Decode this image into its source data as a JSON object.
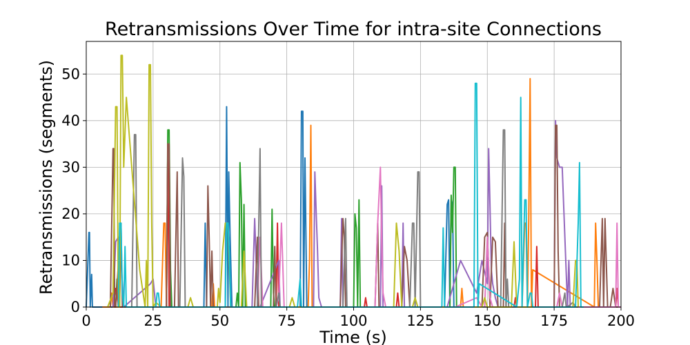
{
  "chart_data": {
    "type": "line",
    "title": "Retransmissions Over Time for intra-site Connections",
    "xlabel": "Time (s)",
    "ylabel": "Retransmissions (segments)",
    "xlim": [
      0,
      200
    ],
    "ylim": [
      0,
      57
    ],
    "xticks": [
      0,
      25,
      50,
      75,
      100,
      125,
      150,
      175,
      200
    ],
    "yticks": [
      0,
      10,
      20,
      30,
      40,
      50
    ],
    "grid": true,
    "legend": "none",
    "series": [
      {
        "color": "#1f77b4",
        "x": [
          0,
          1,
          1.2,
          1.5,
          2,
          2.3,
          3,
          44,
          44.5,
          45,
          52,
          52.5,
          53,
          53.3,
          53.8,
          54.5,
          80,
          80.5,
          81,
          81.3,
          81.8,
          82.5,
          134,
          135,
          135.5,
          136,
          136.5,
          137,
          137.5,
          138
        ],
        "y": [
          0,
          16,
          16,
          0,
          7,
          0,
          0,
          0,
          18,
          0,
          0,
          43,
          0,
          29,
          15,
          0,
          0,
          42,
          42,
          0,
          32,
          0,
          0,
          22,
          23,
          0,
          23,
          22,
          0,
          0
        ]
      },
      {
        "color": "#ff7f0e",
        "x": [
          6,
          9,
          9.5,
          10,
          10.5,
          28,
          29,
          29.5,
          30,
          47,
          47.5,
          48,
          83,
          83.5,
          84,
          84.5,
          85,
          140,
          140.5,
          141,
          163,
          164,
          164.5,
          165,
          165.5,
          166,
          166.5,
          167,
          190,
          190.5,
          191,
          191.5
        ],
        "y": [
          0,
          0,
          3,
          0,
          0,
          0,
          18,
          18,
          0,
          0,
          5,
          0,
          0,
          10,
          39,
          0,
          0,
          0,
          4,
          0,
          0,
          18,
          18,
          0,
          19,
          49,
          0,
          8,
          0,
          18,
          10,
          0
        ]
      },
      {
        "color": "#2ca02c",
        "x": [
          11,
          11.5,
          12,
          30,
          30.5,
          31,
          31.5,
          32,
          56,
          56.5,
          57,
          57.5,
          58,
          58.5,
          59,
          59.5,
          60,
          69,
          69.5,
          70,
          70.5,
          100,
          100.5,
          101,
          101.5,
          102,
          102.5,
          136,
          136.5,
          137,
          137.5,
          138,
          138.5
        ],
        "y": [
          0,
          6,
          0,
          0,
          38,
          38,
          8,
          0,
          0,
          3,
          0,
          31,
          23,
          0,
          22,
          0,
          0,
          0,
          21,
          3,
          0,
          0,
          20,
          17,
          0,
          23,
          0,
          0,
          24,
          16,
          30,
          30,
          0
        ]
      },
      {
        "color": "#d62728",
        "x": [
          10,
          11,
          11.5,
          12,
          30,
          30.5,
          31,
          71,
          71.5,
          72,
          104,
          104.5,
          105,
          116,
          116.5,
          117,
          160,
          160.5,
          161,
          168,
          168.5,
          169,
          198,
          198.5,
          199
        ],
        "y": [
          0,
          4,
          3,
          0,
          0,
          35,
          0,
          0,
          18,
          0,
          0,
          2,
          0,
          0,
          3,
          0,
          0,
          2,
          0,
          0,
          13,
          0,
          0,
          4,
          0
        ]
      },
      {
        "color": "#9467bd",
        "x": [
          10,
          11,
          12,
          13,
          14,
          20,
          24,
          25,
          26,
          62,
          63,
          64,
          64.5,
          65,
          72,
          72.5,
          73,
          85,
          85.5,
          86,
          86.5,
          87,
          88,
          95,
          95.5,
          96,
          110,
          110.5,
          111,
          118,
          118.5,
          119,
          135,
          140,
          146,
          148,
          150,
          150.5,
          151,
          151.5,
          152,
          153,
          154,
          155,
          175,
          175.5,
          176,
          177,
          178,
          180,
          180.5,
          181
        ],
        "y": [
          0,
          14,
          15,
          10,
          0,
          3,
          5,
          6,
          0,
          0,
          19,
          2,
          0,
          0,
          10,
          0,
          0,
          0,
          29,
          20,
          12,
          2,
          0,
          0,
          19,
          0,
          0,
          26,
          0,
          0,
          18,
          0,
          0,
          10,
          3,
          10,
          5,
          34,
          22,
          8,
          5,
          2,
          0,
          0,
          0,
          40,
          32,
          30,
          30,
          0,
          10,
          0
        ]
      },
      {
        "color": "#8c564b",
        "x": [
          9,
          10,
          10.3,
          10.6,
          11,
          12,
          12.5,
          13,
          13.5,
          14,
          30,
          30.5,
          31,
          31.5,
          33,
          34,
          34.5,
          35,
          45,
          45.5,
          46,
          46.5,
          47,
          47.5,
          63,
          64,
          64.5,
          65,
          70,
          70.5,
          71,
          95,
          96,
          96.5,
          97,
          108,
          109,
          109.5,
          110,
          118,
          119,
          120,
          121,
          148,
          149,
          150,
          151,
          152,
          153,
          154,
          156,
          156.5,
          157,
          175,
          175.5,
          176,
          176.5,
          177,
          192,
          193,
          193.5,
          194,
          195,
          196,
          197,
          198,
          199
        ],
        "y": [
          0,
          34,
          34,
          0,
          0,
          9,
          0,
          18,
          0,
          0,
          0,
          35,
          35,
          0,
          0,
          29,
          0,
          0,
          0,
          26,
          14,
          0,
          12,
          0,
          0,
          15,
          0,
          0,
          0,
          13,
          0,
          0,
          19,
          15,
          0,
          0,
          18,
          0,
          0,
          0,
          13,
          10,
          0,
          0,
          15,
          16,
          0,
          15,
          14,
          0,
          0,
          18,
          0,
          0,
          39,
          39,
          12,
          0,
          0,
          19,
          0,
          19,
          0,
          0,
          4,
          0,
          0
        ]
      },
      {
        "color": "#e377c2",
        "x": [
          60,
          64,
          65,
          66,
          67,
          71,
          72,
          73,
          74,
          75,
          86,
          108,
          109,
          110,
          110.5,
          111,
          112,
          135,
          138,
          146,
          148,
          149,
          150,
          151,
          152,
          176,
          177,
          178,
          198,
          198.5,
          199,
          199.5,
          200
        ],
        "y": [
          0,
          0,
          15,
          0,
          0,
          0,
          2,
          18,
          0,
          0,
          0,
          0,
          18,
          30,
          14,
          3,
          0,
          0,
          0,
          2,
          0,
          0,
          15,
          2,
          0,
          0,
          3,
          0,
          0,
          18,
          0,
          0,
          0
        ]
      },
      {
        "color": "#7f7f7f",
        "x": [
          17,
          18,
          18.5,
          19,
          35,
          36,
          36.5,
          37,
          64,
          65,
          65.5,
          66,
          71,
          72,
          72.5,
          73,
          96,
          97,
          97.5,
          98,
          121,
          122,
          122.5,
          123,
          124,
          124.5,
          125,
          155,
          156,
          156.5,
          157,
          157.5,
          158,
          178,
          179,
          179.5,
          180,
          182,
          183,
          183.5,
          184
        ],
        "y": [
          0,
          37,
          37,
          0,
          0,
          32,
          28,
          0,
          0,
          34,
          0,
          0,
          0,
          3,
          0,
          0,
          0,
          19,
          0,
          0,
          0,
          18,
          18,
          0,
          29,
          29,
          0,
          0,
          38,
          38,
          0,
          6,
          0,
          0,
          3,
          0,
          0,
          1,
          0,
          0,
          0
        ]
      },
      {
        "color": "#bcbd22",
        "x": [
          8,
          10,
          11,
          11.5,
          12,
          12.5,
          13,
          13.5,
          14,
          15,
          20,
          22,
          22.5,
          23,
          23.5,
          24,
          24.5,
          25,
          26,
          28,
          38,
          39,
          40,
          49,
          49.5,
          50,
          51,
          52,
          53,
          54,
          58,
          59,
          60,
          76,
          77,
          78,
          95,
          96,
          115,
          116,
          117,
          118,
          122,
          123,
          124,
          148,
          149,
          150,
          155,
          157,
          158,
          159,
          160,
          161,
          162,
          182,
          183,
          183.5,
          184
        ],
        "y": [
          0,
          3,
          43,
          43,
          0,
          0,
          54,
          54,
          30,
          45,
          8,
          0,
          10,
          0,
          52,
          52,
          18,
          0,
          1,
          0,
          0,
          2,
          0,
          0,
          4,
          1,
          12,
          18,
          18,
          0,
          0,
          12,
          0,
          0,
          2,
          0,
          0,
          0,
          0,
          18,
          12,
          0,
          0,
          2,
          0,
          0,
          2,
          0,
          0,
          0,
          0,
          0,
          14,
          0,
          0,
          0,
          10,
          10,
          0
        ]
      },
      {
        "color": "#17becf",
        "x": [
          12,
          12.5,
          13,
          13.5,
          14,
          14.5,
          15,
          26,
          26.5,
          27,
          27.5,
          28,
          52,
          52.5,
          53,
          53.5,
          54,
          79,
          80,
          80.5,
          81,
          133,
          133.5,
          134,
          145,
          145.5,
          146,
          146.5,
          147,
          161,
          162,
          162.5,
          163,
          164,
          164.5,
          165,
          166,
          166.5,
          167,
          183,
          184,
          184.5,
          185,
          186
        ],
        "y": [
          0,
          18,
          18,
          3,
          0,
          13,
          0,
          0,
          3,
          3,
          0,
          0,
          0,
          18,
          18,
          12,
          0,
          0,
          6,
          0,
          0,
          0,
          17,
          0,
          0,
          48,
          48,
          0,
          5,
          0,
          6,
          45,
          0,
          23,
          23,
          0,
          3,
          3,
          0,
          0,
          18,
          31,
          0,
          0
        ]
      }
    ]
  }
}
